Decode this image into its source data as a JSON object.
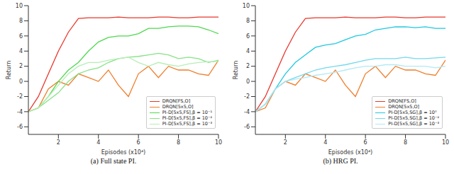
{
  "chart_data": [
    {
      "type": "line",
      "title": "(a) Full state PI.",
      "x_label": "Episodes (x10⁴)",
      "y_label": "Return",
      "x": [
        0.5,
        1,
        1.5,
        2,
        2.5,
        3,
        3.5,
        4,
        4.5,
        5,
        5.5,
        6,
        6.5,
        7,
        7.5,
        8,
        8.5,
        9,
        9.5,
        10
      ],
      "xlim": [
        0.5,
        10
      ],
      "xticks": [
        2,
        4,
        6,
        8,
        10
      ],
      "ylim": [
        -7,
        10
      ],
      "yticks": [
        -6,
        -4,
        -2,
        0,
        2,
        4,
        6,
        8,
        10
      ],
      "grid": false,
      "legend": "lower right",
      "series": [
        {
          "name": "DRQN[FS,O]",
          "color": "#e8372c",
          "values": [
            -4,
            -2,
            1,
            4,
            6.5,
            8.3,
            8.4,
            8.4,
            8.4,
            8.5,
            8.4,
            8.4,
            8.4,
            8.5,
            8.5,
            8.4,
            8.4,
            8.5,
            8.5,
            8.5
          ]
        },
        {
          "name": "DRQN[5x5,O]",
          "color": "#f07d2a",
          "values": [
            -4,
            -3.5,
            -1,
            0,
            -0.5,
            1,
            0.5,
            0,
            1.5,
            -0.5,
            -2,
            1,
            2,
            0.5,
            2,
            1.5,
            1.5,
            1,
            0.8,
            2.8
          ]
        },
        {
          "name": "PI-D[5x5,FS],β = 10⁻¹",
          "color": "#4fd84f",
          "values": [
            -4,
            -3.5,
            -2,
            0,
            1.5,
            2.5,
            4,
            5.2,
            5.8,
            6,
            6,
            6.3,
            7,
            7,
            7.2,
            7.3,
            7.3,
            7.2,
            6.8,
            6.3
          ]
        },
        {
          "name": "PI-D[5x5,FS],β = 10⁻²",
          "color": "#86e286",
          "values": [
            -4,
            -3.5,
            -2.5,
            -1.5,
            0,
            1,
            1.5,
            1.8,
            2.5,
            3,
            3.2,
            3.3,
            3.5,
            3.7,
            3.5,
            3,
            3.2,
            3,
            2.5,
            2.8
          ]
        },
        {
          "name": "PI-D[5x5,FS],β = 10⁻³",
          "color": "#b6eeb6",
          "values": [
            -4,
            -3.5,
            -2,
            -0.5,
            1,
            2,
            2.5,
            2.5,
            2.8,
            3,
            3.2,
            2.5,
            2,
            2.5,
            2.2,
            2,
            2.3,
            2.5,
            2.6,
            2.6
          ]
        }
      ]
    },
    {
      "type": "line",
      "title": "(b) HRG PI.",
      "x_label": "Episodes (x10⁴)",
      "y_label": "Return",
      "x": [
        0.5,
        1,
        1.5,
        2,
        2.5,
        3,
        3.5,
        4,
        4.5,
        5,
        5.5,
        6,
        6.5,
        7,
        7.5,
        8,
        8.5,
        9,
        9.5,
        10
      ],
      "xlim": [
        0.5,
        10
      ],
      "xticks": [
        2,
        4,
        6,
        8,
        10
      ],
      "ylim": [
        -7,
        10
      ],
      "yticks": [
        -6,
        -4,
        -2,
        0,
        2,
        4,
        6,
        8,
        10
      ],
      "grid": false,
      "legend": "lower right",
      "series": [
        {
          "name": "DRQN[FS,O]",
          "color": "#e8372c",
          "values": [
            -4,
            -2,
            1,
            4,
            6.5,
            8.3,
            8.4,
            8.4,
            8.4,
            8.5,
            8.4,
            8.4,
            8.4,
            8.5,
            8.5,
            8.4,
            8.4,
            8.5,
            8.5,
            8.5
          ]
        },
        {
          "name": "DRQN[5x5,O]",
          "color": "#f07d2a",
          "values": [
            -4,
            -3.5,
            -1,
            0,
            -0.5,
            1,
            0.5,
            0,
            1.5,
            -0.5,
            -2,
            1,
            2,
            0.5,
            2,
            1.5,
            1.5,
            1,
            0.8,
            2.8
          ]
        },
        {
          "name": "PI-D[5x5,SG],β = 10⁰",
          "color": "#1fc8e0",
          "values": [
            -4,
            -3,
            -1,
            1,
            2.5,
            3.5,
            4.5,
            4.8,
            5,
            5.5,
            6,
            6.2,
            6.8,
            7,
            7.2,
            7.2,
            7.1,
            7.2,
            7,
            7
          ]
        },
        {
          "name": "PI-D[5x5,SG],β = 10⁻²",
          "color": "#72d9ec",
          "values": [
            -4,
            -3,
            -1,
            0,
            0.5,
            1,
            1.5,
            1.8,
            2,
            2.2,
            2.5,
            2.8,
            3,
            3,
            3,
            3.2,
            3,
            3,
            3.1,
            3.2
          ]
        },
        {
          "name": "PI-D[5x5,SG],β = 10⁻³",
          "color": "#b2e9f4",
          "values": [
            -4,
            -3,
            -1,
            0,
            0.3,
            0.5,
            0.8,
            1,
            1.2,
            1.5,
            1.8,
            2,
            2,
            2.2,
            2.2,
            2,
            2,
            2,
            1.8,
            2
          ]
        }
      ]
    }
  ]
}
